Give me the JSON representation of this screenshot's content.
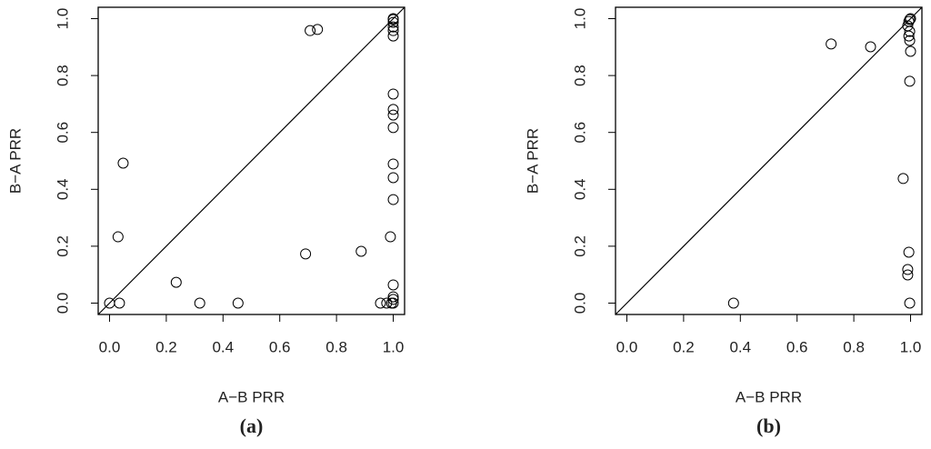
{
  "chart_data": [
    {
      "type": "scatter",
      "caption": "(a)",
      "x_label": "A−B PRR",
      "y_label": "B−A PRR",
      "color": "#000000",
      "xlim": [
        -0.04,
        1.04
      ],
      "ylim": [
        -0.04,
        1.04
      ],
      "xticks": [
        {
          "value": 0,
          "label": "0.0"
        },
        0.2,
        0.4,
        0.6,
        0.8,
        {
          "value": 1,
          "label": "1.0"
        }
      ],
      "yticks": [
        {
          "value": 0,
          "label": "0.0"
        },
        0.2,
        0.4,
        0.6,
        0.8,
        {
          "value": 1,
          "label": "1.0"
        }
      ],
      "x": [
        0,
        0.035,
        0.03,
        0.048,
        0.235,
        0.318,
        0.453,
        0.691,
        0.707,
        0.733,
        0.887,
        0.955,
        0.977,
        0.99,
        0.994,
        1,
        1,
        1,
        1,
        1,
        1,
        1,
        1,
        1,
        1,
        1,
        1,
        1,
        1,
        1,
        1,
        1
      ],
      "y": [
        0,
        0,
        0.233,
        0.492,
        0.073,
        0,
        0,
        0.173,
        0.958,
        0.962,
        0.182,
        0,
        0,
        0.233,
        0,
        1,
        0.997,
        0.987,
        0.971,
        0.958,
        0.939,
        0.735,
        0.681,
        0.661,
        0.617,
        0.489,
        0.441,
        0.364,
        0.064,
        0.022,
        0.013,
        0
      ]
    },
    {
      "type": "scatter",
      "caption": "(b)",
      "x_label": "A−B PRR",
      "y_label": "B−A PRR",
      "color": "#000000",
      "xlim": [
        -0.04,
        1.04
      ],
      "ylim": [
        -0.04,
        1.04
      ],
      "xticks": [
        {
          "value": 0,
          "label": "0.0"
        },
        0.2,
        0.4,
        0.6,
        0.8,
        {
          "value": 1,
          "label": "1.0"
        }
      ],
      "yticks": [
        {
          "value": 0,
          "label": "0.0"
        },
        0.2,
        0.4,
        0.6,
        0.8,
        {
          "value": 1,
          "label": "1.0"
        }
      ],
      "x": [
        0.376,
        0.72,
        0.859,
        0.974,
        0.997,
        1,
        0.994,
        0.99,
        0.997,
        0.994,
        0.997,
        1,
        0.997,
        0.994,
        0.99,
        0.99,
        0.997
      ],
      "y": [
        0,
        0.911,
        0.901,
        0.438,
        0.997,
        1,
        0.99,
        0.975,
        0.955,
        0.939,
        0.923,
        0.885,
        0.78,
        0.179,
        0.118,
        0.099,
        0
      ]
    }
  ]
}
